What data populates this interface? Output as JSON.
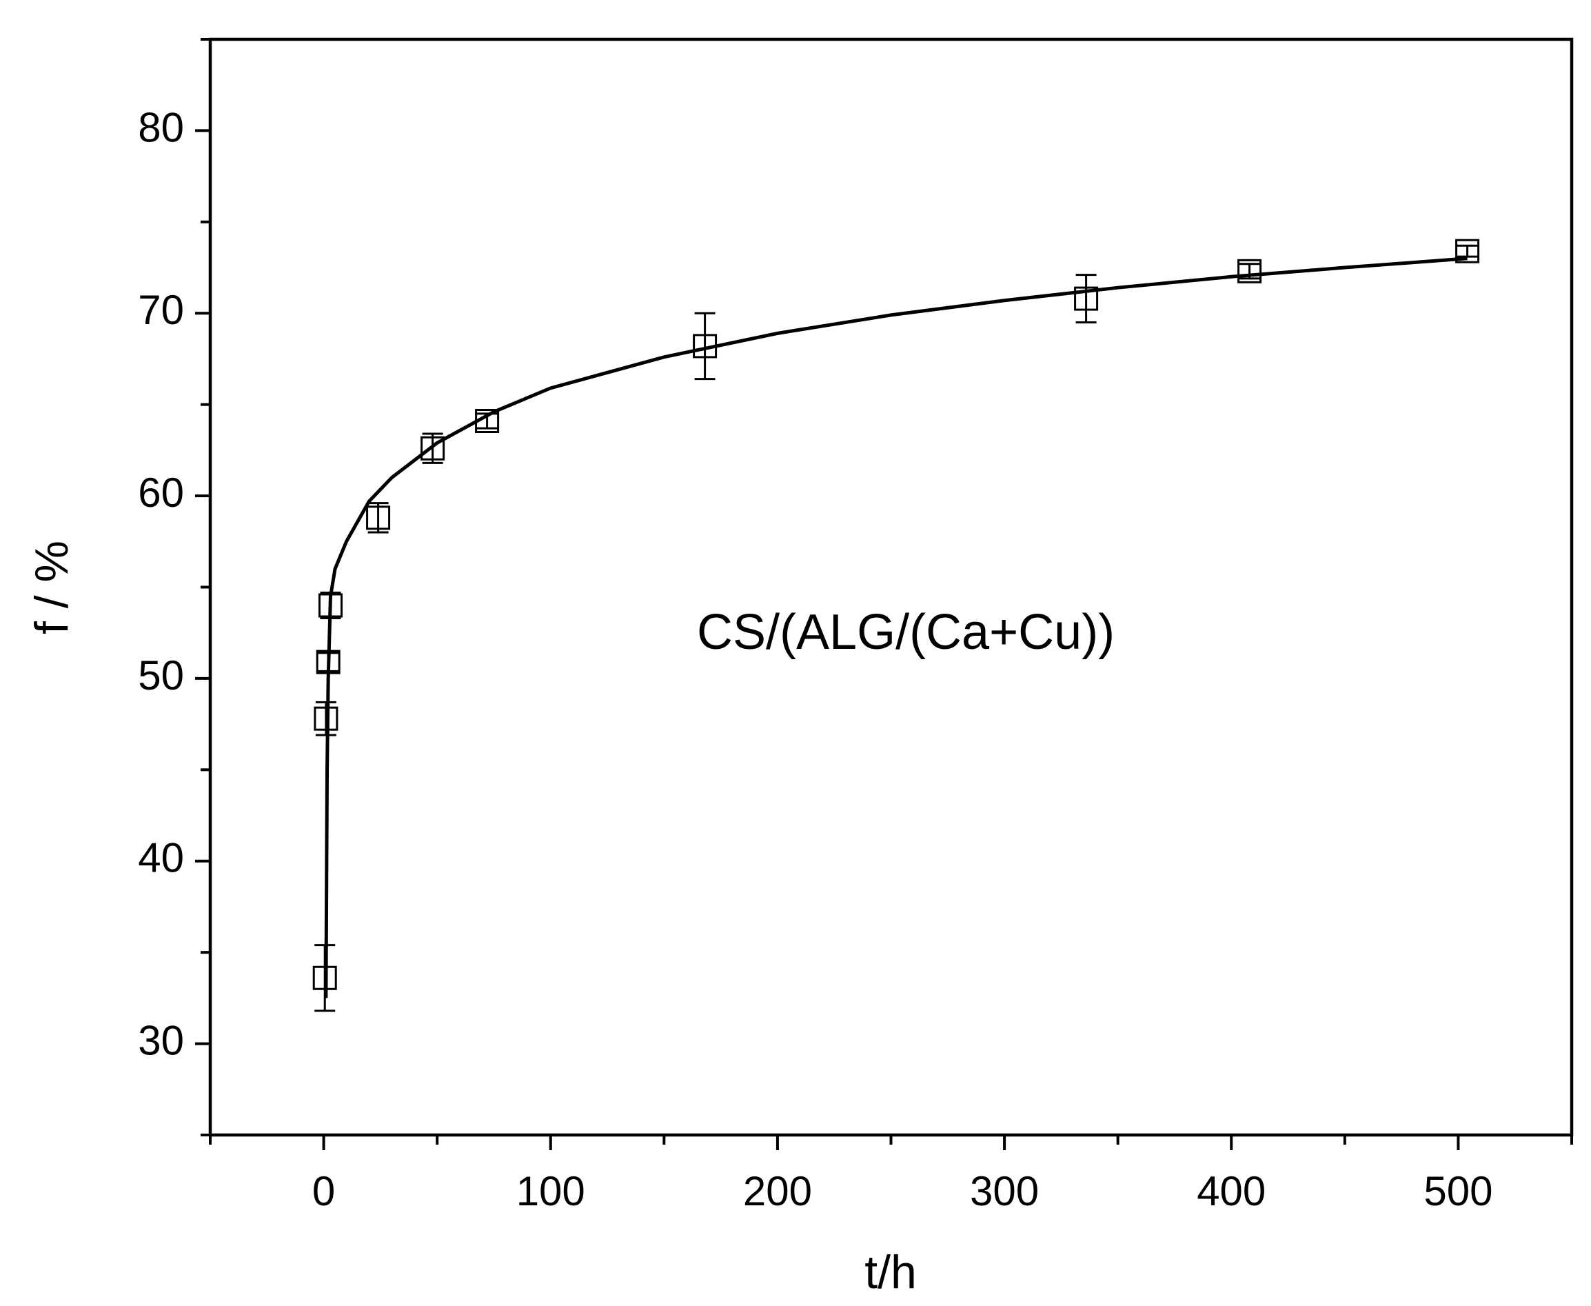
{
  "chart_data": {
    "type": "scatter",
    "xlabel": "t/h",
    "ylabel": "f / %",
    "annotation": "CS/(ALG/(Ca+Cu))",
    "xlim": [
      -50,
      550
    ],
    "ylim": [
      25,
      85
    ],
    "xticks": [
      0,
      100,
      200,
      300,
      400,
      500
    ],
    "yticks": [
      30,
      40,
      50,
      60,
      70,
      80
    ],
    "xminorticks": [
      -50,
      50,
      150,
      250,
      350,
      450,
      550
    ],
    "yminorticks": [
      25,
      35,
      45,
      55,
      65,
      75,
      85
    ],
    "series": [
      {
        "color": "#000000",
        "x": [
          0.5,
          1,
          2,
          3,
          24,
          48,
          72,
          168,
          336,
          408,
          504
        ],
        "y": [
          33.6,
          47.8,
          50.9,
          54.0,
          58.8,
          62.6,
          64.1,
          68.2,
          70.8,
          72.3,
          73.4
        ],
        "errors": [
          1.8,
          0.9,
          0.5,
          0.7,
          0.8,
          0.8,
          0.4,
          1.8,
          1.3,
          0.4,
          0.3
        ]
      }
    ],
    "fit": {
      "color": "#000000",
      "x": [
        1,
        1.5,
        2,
        3,
        5,
        10,
        20,
        30,
        50,
        75,
        100,
        150,
        200,
        250,
        300,
        350,
        400,
        450,
        504
      ],
      "y": [
        32.5,
        45,
        50,
        54.5,
        56,
        57.5,
        59.7,
        61,
        62.9,
        64.6,
        65.9,
        67.6,
        68.9,
        69.9,
        70.7,
        71.4,
        72.0,
        72.5,
        73.0
      ]
    }
  }
}
